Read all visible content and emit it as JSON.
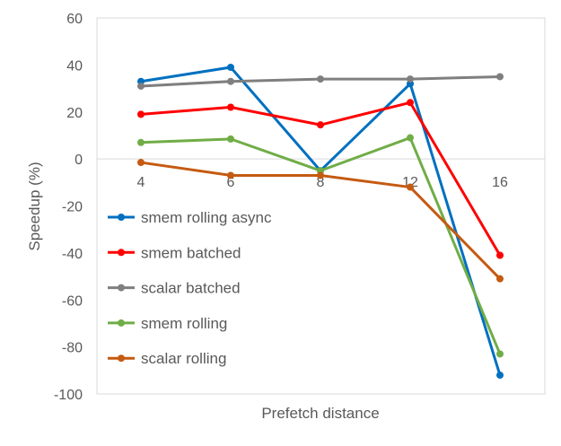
{
  "chart_data": {
    "type": "line",
    "title": "",
    "xlabel": "Prefetch distance",
    "ylabel": "Speedup (%)",
    "categories": [
      "4",
      "6",
      "8",
      "12",
      "16"
    ],
    "ylim": [
      -100,
      60
    ],
    "yticks": [
      60,
      40,
      20,
      0,
      -20,
      -40,
      -60,
      -80,
      -100
    ],
    "grid": false,
    "legend_placement": "left",
    "series": [
      {
        "name": "smem rolling async",
        "color": "#0070C0",
        "values": [
          33,
          39,
          -5,
          32,
          -92
        ]
      },
      {
        "name": "smem batched",
        "color": "#FF0000",
        "values": [
          19,
          22,
          14.5,
          24,
          -41
        ]
      },
      {
        "name": "scalar batched",
        "color": "#7F7F7F",
        "values": [
          31,
          33,
          34,
          34,
          35
        ]
      },
      {
        "name": "smem rolling",
        "color": "#70AD47",
        "values": [
          7,
          8.5,
          -5,
          9,
          -83
        ]
      },
      {
        "name": "scalar rolling",
        "color": "#C55A11",
        "values": [
          -1.5,
          -7,
          -7,
          -12,
          -51
        ]
      }
    ]
  }
}
